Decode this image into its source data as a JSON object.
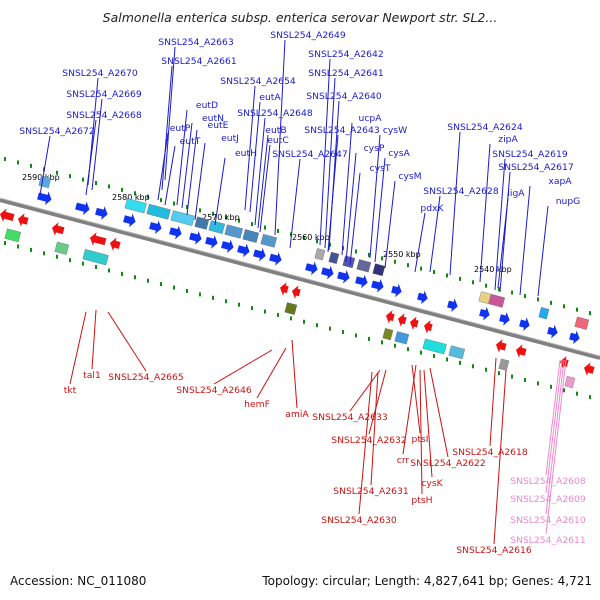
{
  "title": "Salmonella enterica subsp. enterica serovar Newport str. SL2...",
  "accession": "Accession: NC_011080",
  "summary": "Topology: circular; Length: 4,827,641 bp; Genes: 4,721",
  "colors": {
    "forward_label": "#1a1acc",
    "reverse_label": "#cc1111",
    "rna_label": "#ee88cc",
    "forward_arrow": "#1133ee",
    "reverse_arrow": "#ee1111",
    "backbone": "#808080",
    "tick": "#118811"
  },
  "kbp_ticks": [
    {
      "label": "2590 kbp"
    },
    {
      "label": "2580 kbp"
    },
    {
      "label": "2570 kbp"
    },
    {
      "label": "2560 kbp"
    },
    {
      "label": "2550 kbp"
    },
    {
      "label": "2540 kbp"
    }
  ],
  "forward_labels": [
    {
      "text": "SNSL254_A2663"
    },
    {
      "text": "SNSL254_A2649"
    },
    {
      "text": "SNSL254_A2661"
    },
    {
      "text": "SNSL254_A2642"
    },
    {
      "text": "SNSL254_A2670"
    },
    {
      "text": "SNSL254_A2641"
    },
    {
      "text": "SNSL254_A2669"
    },
    {
      "text": "SNSL254_A2654"
    },
    {
      "text": "SNSL254_A2640"
    },
    {
      "text": "eutD"
    },
    {
      "text": "eutA"
    },
    {
      "text": "SNSL254_A2668"
    },
    {
      "text": "eutN"
    },
    {
      "text": "ucpA"
    },
    {
      "text": "SNSL254_A2648"
    },
    {
      "text": "eutP"
    },
    {
      "text": "eutE"
    },
    {
      "text": "SNSL254_A2672"
    },
    {
      "text": "eutB"
    },
    {
      "text": "SNSL254_A2643"
    },
    {
      "text": "cysW"
    },
    {
      "text": "SNSL254_A2624"
    },
    {
      "text": "eutT"
    },
    {
      "text": "eutJ"
    },
    {
      "text": "eutC"
    },
    {
      "text": "cysP"
    },
    {
      "text": "zipA"
    },
    {
      "text": "eutH"
    },
    {
      "text": "SNSL254_A2647"
    },
    {
      "text": "cysA"
    },
    {
      "text": "SNSL254_A2619"
    },
    {
      "text": "cysT"
    },
    {
      "text": "SNSL254_A2617"
    },
    {
      "text": "cysM"
    },
    {
      "text": "xapA"
    },
    {
      "text": "ligA"
    },
    {
      "text": "SNSL254_A2628"
    },
    {
      "text": "nupG"
    },
    {
      "text": "pdxK"
    }
  ],
  "reverse_labels": [
    {
      "text": "tal1"
    },
    {
      "text": "SNSL254_A2665"
    },
    {
      "text": "tkt"
    },
    {
      "text": "SNSL254_A2646"
    },
    {
      "text": "hemF"
    },
    {
      "text": "amiA"
    },
    {
      "text": "SNSL254_A2633"
    },
    {
      "text": "ptsI"
    },
    {
      "text": "SNSL254_A2632"
    },
    {
      "text": "SNSL254_A2618"
    },
    {
      "text": "crr"
    },
    {
      "text": "SNSL254_A2622"
    },
    {
      "text": "cysK"
    },
    {
      "text": "SNSL254_A2631"
    },
    {
      "text": "ptsH"
    },
    {
      "text": "SNSL254_A2630"
    },
    {
      "text": "SNSL254_A2616"
    }
  ],
  "rna_labels": [
    {
      "text": "SNSL254_A2608"
    },
    {
      "text": "SNSL254_A2609"
    },
    {
      "text": "SNSL254_A2610"
    },
    {
      "text": "SNSL254_A2611"
    }
  ]
}
